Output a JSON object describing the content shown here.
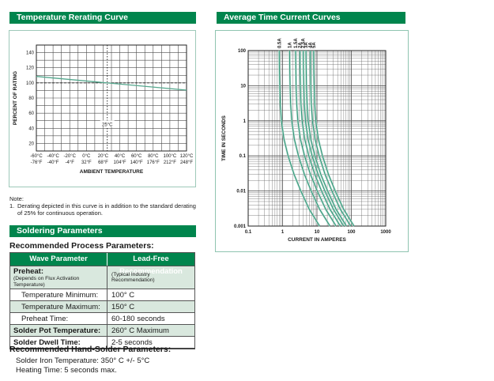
{
  "colors": {
    "header_green": "#00854d",
    "curve_green": "#2f9478",
    "curve_glow": "#b4dbcc",
    "derating_line": "#55a88e",
    "row_tint": "#d9e8de",
    "box_border": "#9ec9b9",
    "grid_line": "#4d4d4d",
    "dashed_line": "#1a1a1a"
  },
  "sections": {
    "temperature_rerating": {
      "title": "Temperature Rerating Curve"
    },
    "average_time": {
      "title": "Average Time Current Curves"
    },
    "soldering": {
      "title": "Soldering Parameters"
    }
  },
  "note": {
    "label": "Note:",
    "number": "1.",
    "text": "Derating depicted in this curve is in addition to the standard derating of 25% for continuous operation."
  },
  "process_params": {
    "heading": "Recommended Process Parameters:",
    "table": {
      "headers": [
        "Wave Parameter",
        "Lead-Free Recommendation"
      ],
      "rows": [
        {
          "param": "Preheat:",
          "param_sub": "(Depends on Flux Activation Temperature)",
          "value": "",
          "value_sub": "(Typical Industry Recommendation)",
          "tinted": true,
          "indent": false
        },
        {
          "param": "Temperature Minimum:",
          "value": "100° C",
          "tinted": false,
          "indent": true
        },
        {
          "param": "Temperature Maximum:",
          "value": "150° C",
          "tinted": true,
          "indent": true
        },
        {
          "param": "Preheat Time:",
          "value": "60-180 seconds",
          "tinted": false,
          "indent": true
        },
        {
          "param": "Solder Pot Temperature:",
          "value": "260° C Maximum",
          "tinted": true,
          "indent": false
        },
        {
          "param": "Solder Dwell Time:",
          "value": "2-5 seconds",
          "tinted": false,
          "indent": false
        }
      ]
    }
  },
  "hand_solder": {
    "heading": "Recommended Hand-Solder Parameters:",
    "lines": [
      "Solder Iron Temperature: 350° C +/- 5°C",
      "Heating Time: 5 seconds max."
    ]
  },
  "chart_data": [
    {
      "type": "line",
      "title": "Temperature Rerating Curve",
      "xlabel": "AMBIENT TEMPERATURE",
      "ylabel": "PERCENT OF RATING",
      "xlim": [
        -60,
        120
      ],
      "ylim": [
        10,
        150
      ],
      "grid_step_x": 10,
      "grid_step_y": 10,
      "x_tick_values": [
        -60,
        -40,
        -20,
        0,
        20,
        40,
        60,
        80,
        100,
        120
      ],
      "x_ticks_celsius": [
        "-60°C",
        "-40°C",
        "-20°C",
        "0°C",
        "20°C",
        "40°C",
        "60°C",
        "80°C",
        "100°C",
        "120°C"
      ],
      "x_ticks_fahrenheit": [
        "-76°F",
        "-40°F",
        "-4°F",
        "32°F",
        "68°F",
        "104°F",
        "140°F",
        "176°F",
        "212°F",
        "248°F"
      ],
      "y_tick_values": [
        20,
        40,
        60,
        80,
        100,
        120,
        140
      ],
      "series": [
        {
          "name": "derating-curve",
          "points": [
            [
              -60,
              108.5
            ],
            [
              25,
              100
            ],
            [
              120,
              90.5
            ]
          ]
        }
      ],
      "reference_lines": {
        "h_dashed_y": 100,
        "v_dashed_x": 25,
        "v_label": "25°C",
        "v_label_y": 45
      }
    },
    {
      "type": "line",
      "title": "Average Time Current Curves",
      "xlabel": "CURRENT IN AMPERES",
      "ylabel": "TIME IN SECONDS",
      "x_scale": "log",
      "y_scale": "log",
      "xlim": [
        0.1,
        1000
      ],
      "ylim": [
        0.001,
        100
      ],
      "x_ticks": [
        "0.1",
        "1",
        "10",
        "100",
        "1000"
      ],
      "y_ticks": [
        "100",
        "10",
        "1",
        "0.1",
        "0.01",
        "0.001"
      ],
      "ratings_amps": [
        0.5,
        1,
        1.5,
        2,
        2.5,
        3,
        4,
        5
      ],
      "curve_labels": [
        "0.5A",
        "1A",
        "1.5A",
        "2A",
        "2.5A",
        "3A",
        "4A",
        "5A"
      ],
      "time_points_seconds": [
        100,
        30,
        10,
        3,
        1,
        0.3,
        0.1,
        0.03,
        0.01,
        0.003,
        0.001
      ],
      "current_multipliers": [
        1.6,
        1.62,
        1.65,
        1.72,
        1.85,
        2.2,
        2.9,
        4.3,
        6.8,
        12,
        24
      ]
    }
  ]
}
